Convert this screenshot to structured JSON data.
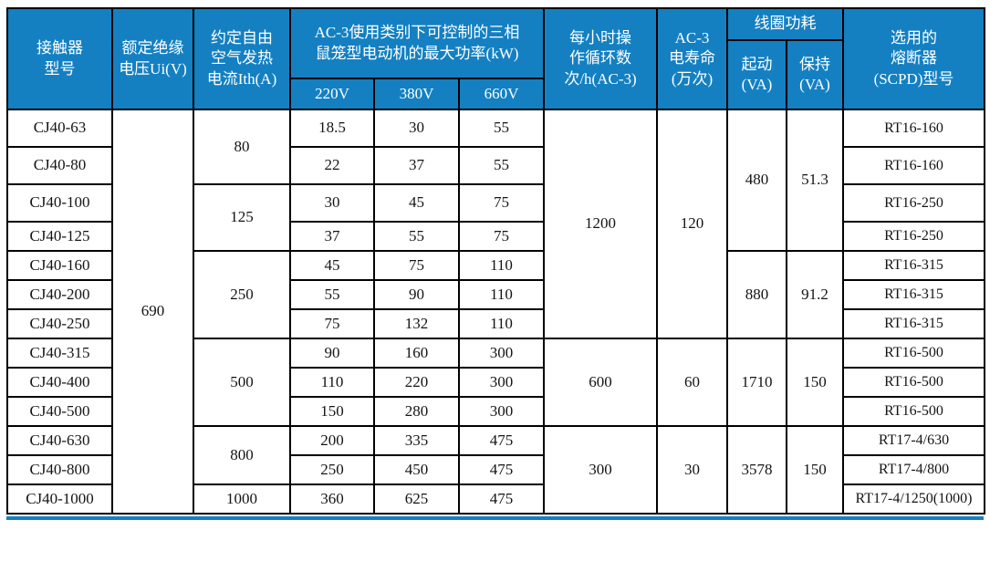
{
  "colors": {
    "header_blue": "#1480C2",
    "grid_black": "#000000",
    "body_bg": "#FFFFFF",
    "header_text": "#FFFFFF",
    "body_text": "#141414"
  },
  "header": {
    "contactor": [
      "接触器",
      "型号"
    ],
    "insulation_voltage": [
      "额定绝缘",
      "电压Ui(V)"
    ],
    "thermal_current": [
      "约定自由",
      "空气发热",
      "电流Ith(A)"
    ],
    "power_group": [
      "AC-3使用类别下可控制的三相",
      "鼠笼型电动机的最大功率(kW)"
    ],
    "power_220": "220V",
    "power_380": "380V",
    "power_660": "660V",
    "cycles": [
      "每小时操",
      "作循环数",
      "次/h(AC-3)"
    ],
    "life": [
      "AC-3",
      "电寿命",
      "(万次)"
    ],
    "coil_group": "线圈功耗",
    "coil_start": [
      "起动",
      "(VA)"
    ],
    "coil_hold": [
      "保持",
      "(VA)"
    ],
    "fuse": [
      "选用的",
      "熔断器",
      "(SCPD)型号"
    ]
  },
  "merged": {
    "ui_voltage": "690",
    "ith": [
      "80",
      "125",
      "250",
      "500",
      "800",
      "1000"
    ],
    "cycles": [
      "1200",
      "600",
      "300"
    ],
    "life": [
      "120",
      "60",
      "30"
    ],
    "coil_start": [
      "480",
      "880",
      "1710",
      "3578"
    ],
    "coil_hold": [
      "51.3",
      "91.2",
      "150",
      "150"
    ]
  },
  "rows": [
    {
      "model": "CJ40-63",
      "p220": "18.5",
      "p380": "30",
      "p660": "55",
      "fuse": "RT16-160"
    },
    {
      "model": "CJ40-80",
      "p220": "22",
      "p380": "37",
      "p660": "55",
      "fuse": "RT16-160"
    },
    {
      "model": "CJ40-100",
      "p220": "30",
      "p380": "45",
      "p660": "75",
      "fuse": "RT16-250"
    },
    {
      "model": "CJ40-125",
      "p220": "37",
      "p380": "55",
      "p660": "75",
      "fuse": "RT16-250"
    },
    {
      "model": "CJ40-160",
      "p220": "45",
      "p380": "75",
      "p660": "110",
      "fuse": "RT16-315"
    },
    {
      "model": "CJ40-200",
      "p220": "55",
      "p380": "90",
      "p660": "110",
      "fuse": "RT16-315"
    },
    {
      "model": "CJ40-250",
      "p220": "75",
      "p380": "132",
      "p660": "110",
      "fuse": "RT16-315"
    },
    {
      "model": "CJ40-315",
      "p220": "90",
      "p380": "160",
      "p660": "300",
      "fuse": "RT16-500"
    },
    {
      "model": "CJ40-400",
      "p220": "110",
      "p380": "220",
      "p660": "300",
      "fuse": "RT16-500"
    },
    {
      "model": "CJ40-500",
      "p220": "150",
      "p380": "280",
      "p660": "300",
      "fuse": "RT16-500"
    },
    {
      "model": "CJ40-630",
      "p220": "200",
      "p380": "335",
      "p660": "475",
      "fuse": "RT17-4/630"
    },
    {
      "model": "CJ40-800",
      "p220": "250",
      "p380": "450",
      "p660": "475",
      "fuse": "RT17-4/800"
    },
    {
      "model": "CJ40-1000",
      "p220": "360",
      "p380": "625",
      "p660": "475",
      "fuse": "RT17-4/1250(1000)"
    }
  ]
}
